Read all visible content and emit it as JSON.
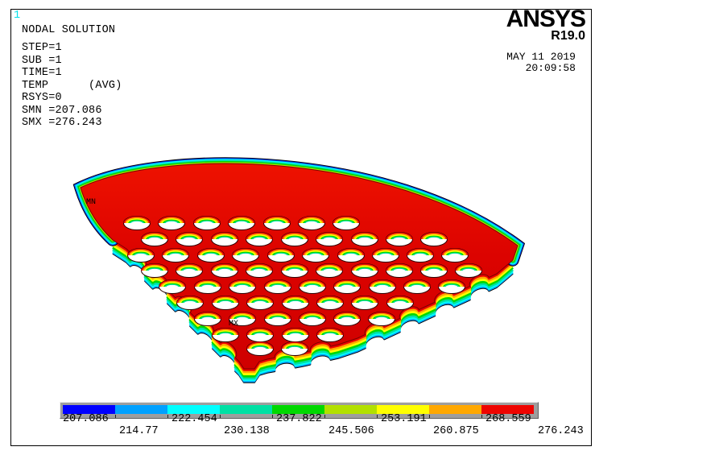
{
  "plot_number": "1",
  "annotation": {
    "lines": [
      "NODAL SOLUTION",
      "STEP=1",
      "SUB =1",
      "TIME=1",
      "TEMP      (AVG)",
      "RSYS=0",
      "SMN =207.086",
      "SMX =276.243"
    ]
  },
  "brand": {
    "logo": "ANSYS",
    "release": "R19.0",
    "date": "MAY 11 2019",
    "time": "20:09:58"
  },
  "model": {
    "min_marker": "MN",
    "max_marker": "MX"
  },
  "legend": {
    "values": [
      "207.086",
      "214.77",
      "222.454",
      "230.138",
      "237.822",
      "245.506",
      "253.191",
      "260.875",
      "268.559",
      "276.243"
    ],
    "colors": [
      "#0000ff",
      "#00a1ff",
      "#00ffff",
      "#00e0a4",
      "#00d800",
      "#b2e000",
      "#ffff00",
      "#ffa800",
      "#ee0400"
    ],
    "surface_red_top": "#ee1200",
    "surface_red_bottom": "#cf0000"
  }
}
